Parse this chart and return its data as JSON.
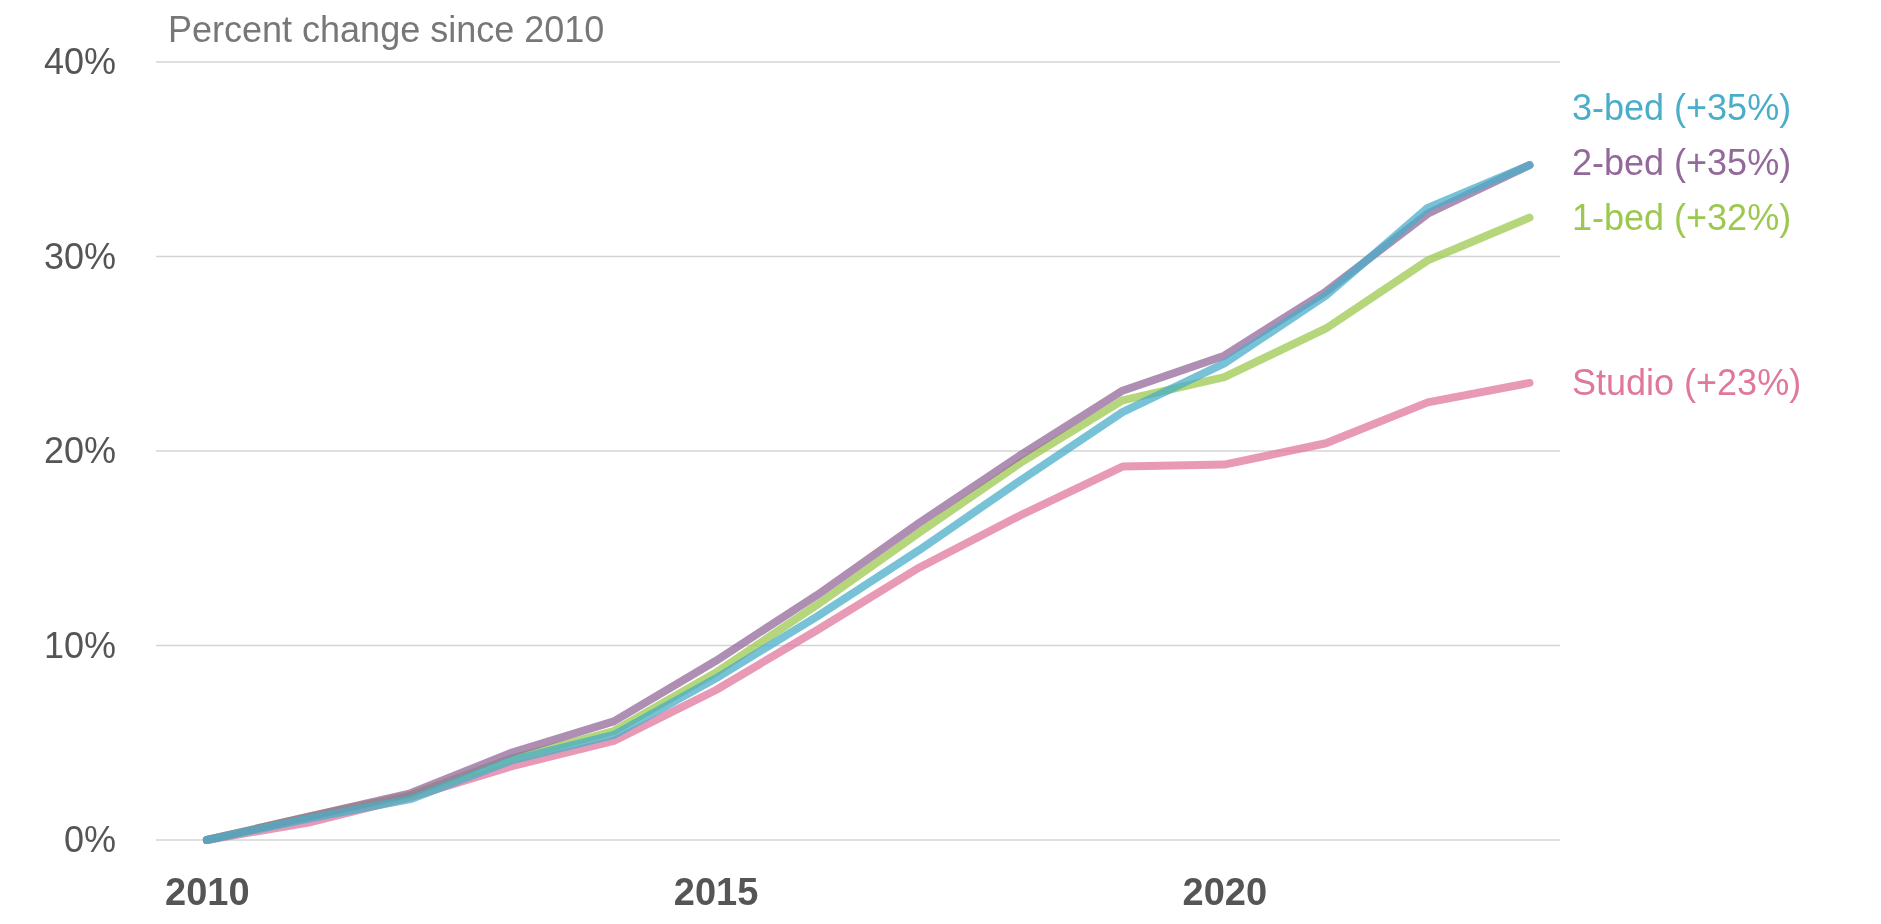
{
  "chart_data": {
    "type": "line",
    "title": "Percent change since 2010",
    "x": [
      2010,
      2011,
      2012,
      2013,
      2014,
      2015,
      2016,
      2017,
      2018,
      2019,
      2020,
      2021,
      2022,
      2023
    ],
    "xlim": [
      2009.5,
      2023.3
    ],
    "xticks": [
      2010,
      2015,
      2020
    ],
    "ylim": [
      0,
      40
    ],
    "yticks": [
      {
        "value": 0,
        "label": "0%"
      },
      {
        "value": 10,
        "label": "10%"
      },
      {
        "value": 20,
        "label": "20%"
      },
      {
        "value": 30,
        "label": "30%"
      },
      {
        "value": 40,
        "label": "40%"
      }
    ],
    "grid": "y",
    "marker": "none",
    "line_style": "solid",
    "series": [
      {
        "name": "3-bed (+35%)",
        "color": "#4aaec8",
        "values": [
          0,
          1.1,
          2.1,
          4.1,
          5.4,
          8.3,
          11.5,
          14.9,
          18.5,
          22.0,
          24.5,
          28.0,
          32.5,
          34.7
        ]
      },
      {
        "name": "2-bed (+35%)",
        "color": "#93689a",
        "values": [
          0,
          1.2,
          2.4,
          4.5,
          6.1,
          9.2,
          12.6,
          16.3,
          19.8,
          23.1,
          24.9,
          28.2,
          32.2,
          34.7
        ]
      },
      {
        "name": "1-bed (+32%)",
        "color": "#9cc84e",
        "values": [
          0,
          1.2,
          2.3,
          4.2,
          5.6,
          8.6,
          12.1,
          15.8,
          19.4,
          22.6,
          23.8,
          26.3,
          29.8,
          32.0
        ]
      },
      {
        "name": "Studio (+23%)",
        "color": "#e0779c",
        "values": [
          0,
          0.9,
          2.2,
          3.8,
          5.1,
          7.7,
          10.8,
          14.0,
          16.7,
          19.2,
          19.3,
          20.4,
          22.5,
          23.5
        ]
      }
    ]
  }
}
